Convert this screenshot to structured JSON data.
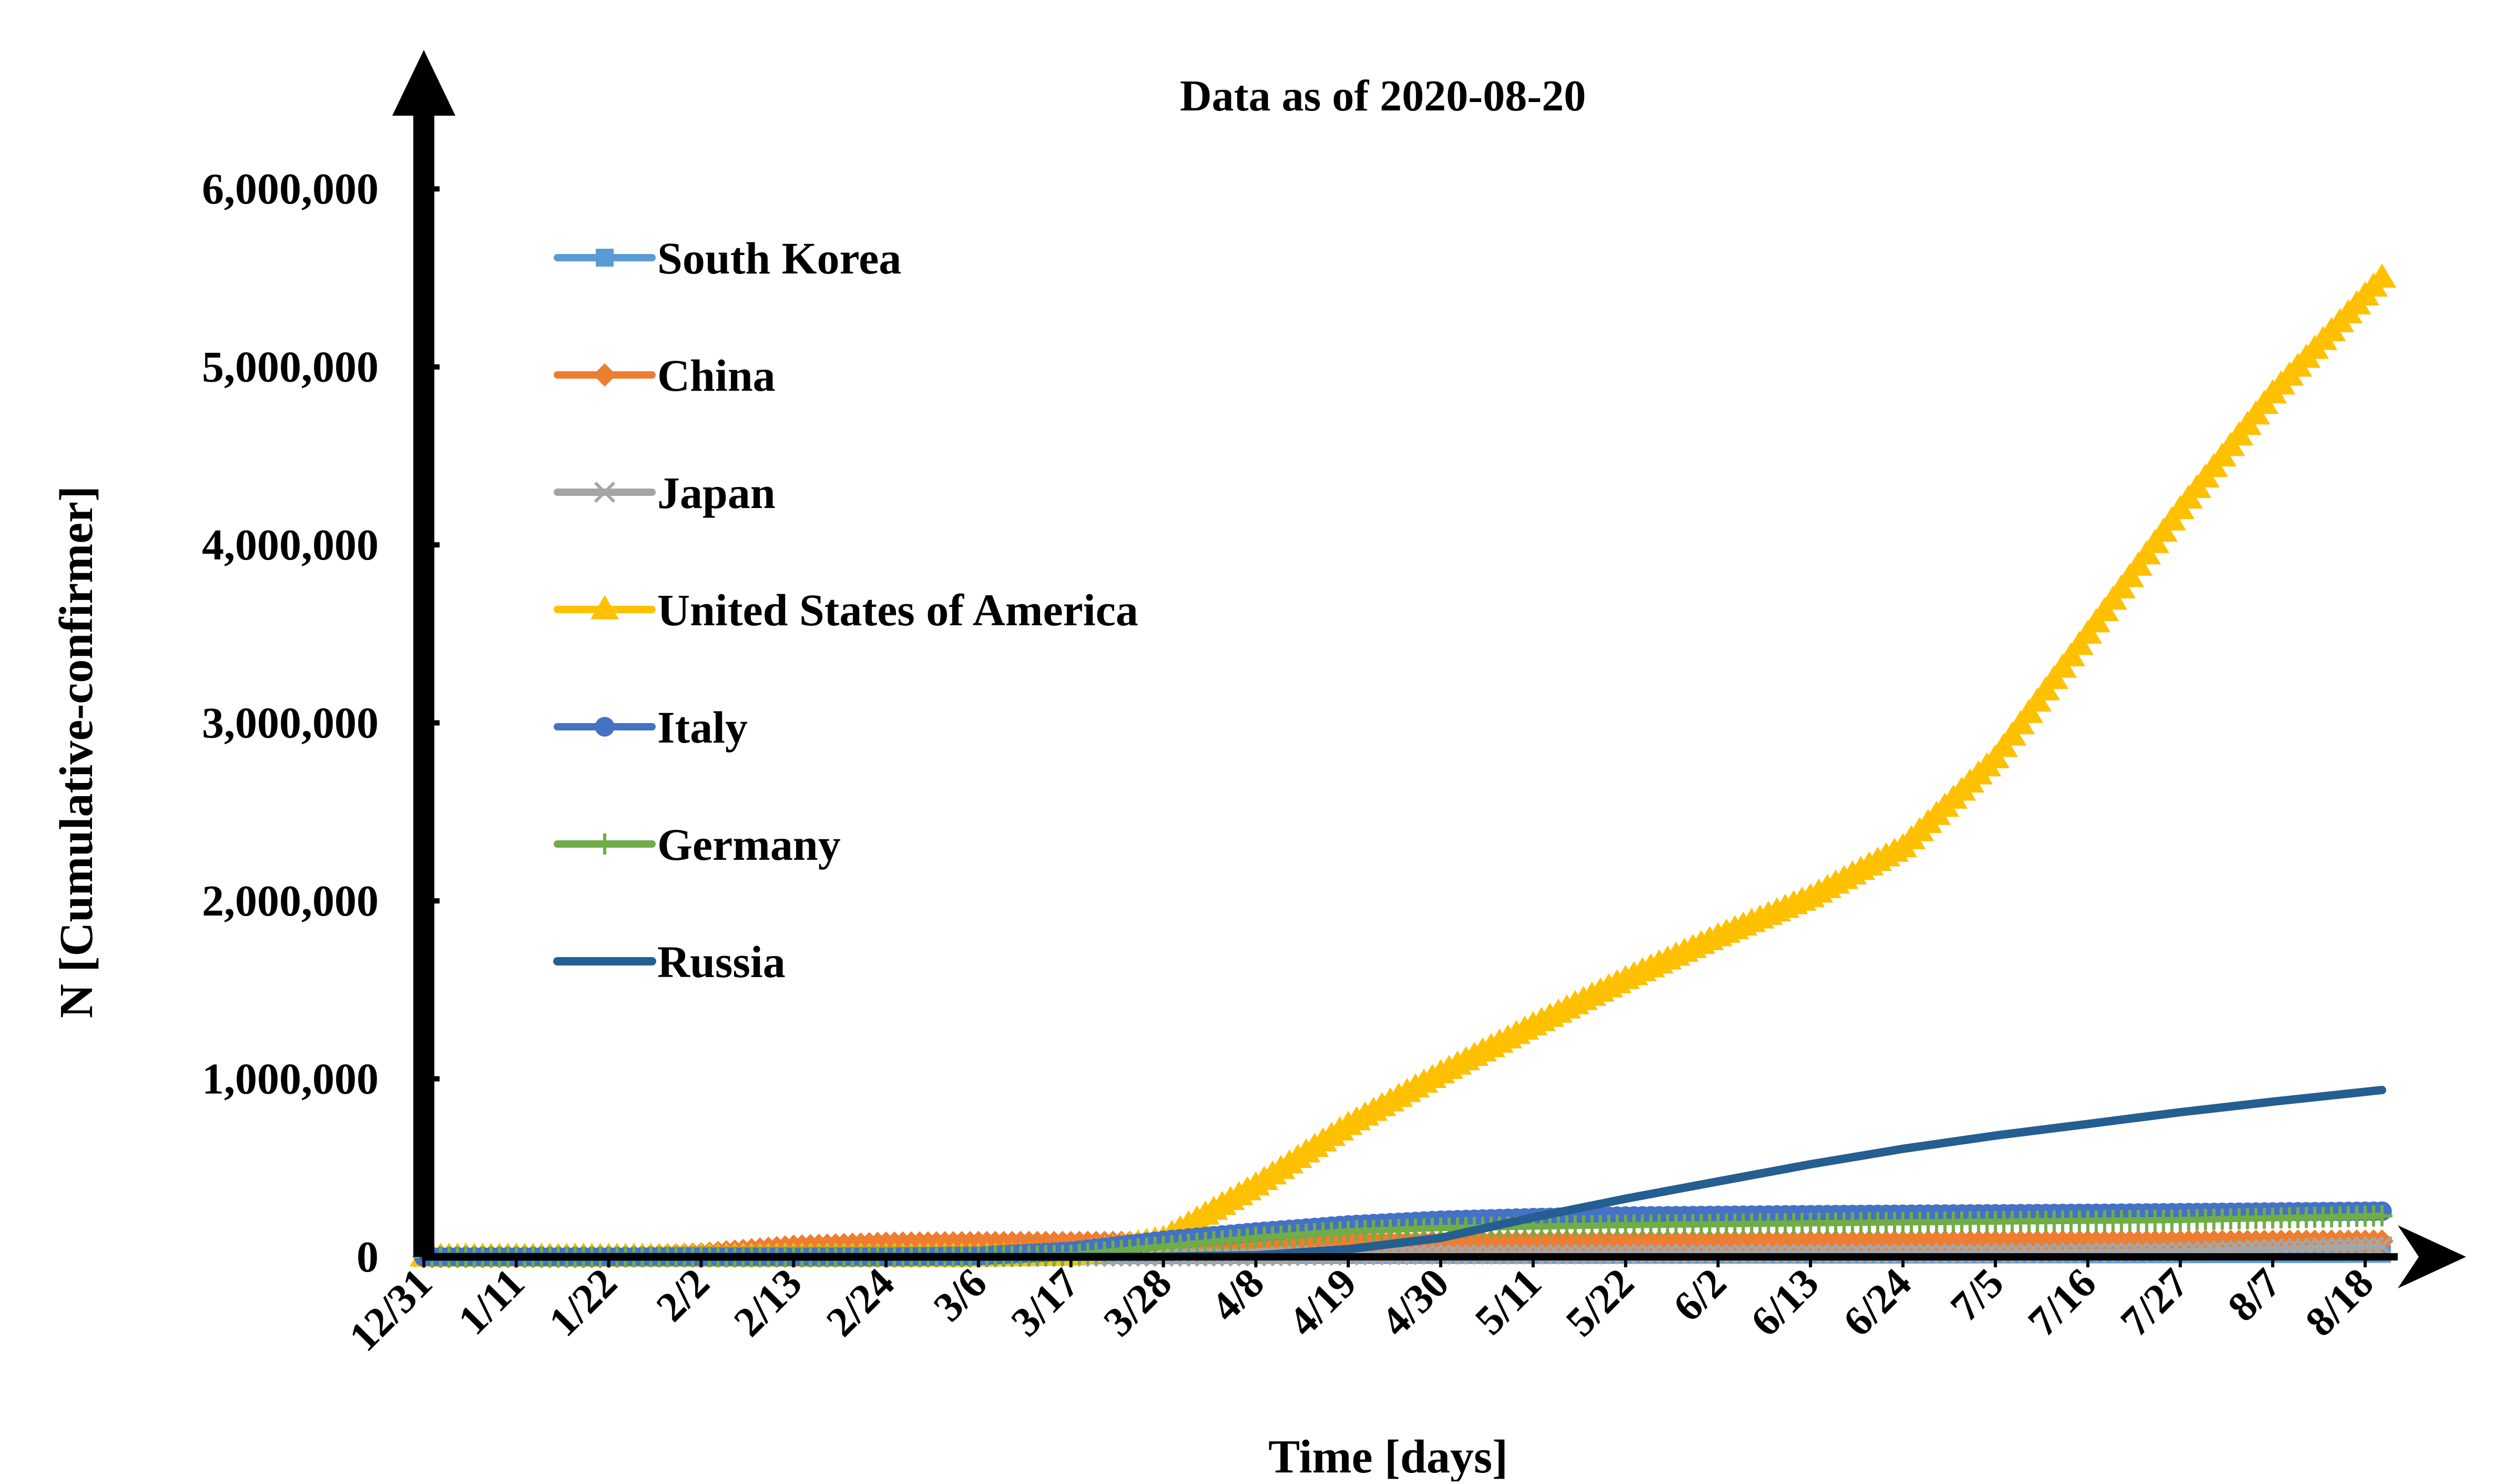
{
  "chart_data": {
    "type": "line",
    "title": "Data as of 2020-08-20",
    "xlabel": "Time [days]",
    "ylabel": "N [Cumulative-confirmer]",
    "ylim": [
      0,
      6500000
    ],
    "y_ticks": [
      "0",
      "1,000,000",
      "2,000,000",
      "3,000,000",
      "4,000,000",
      "5,000,000",
      "6,000,000"
    ],
    "y_tick_values": [
      0,
      1000000,
      2000000,
      3000000,
      4000000,
      5000000,
      6000000
    ],
    "x_start_date": "2019-12-31",
    "x_end_date": "2020-08-20",
    "x_tick_labels": [
      "12/31",
      "1/11",
      "1/22",
      "2/2",
      "2/13",
      "2/24",
      "3/6",
      "3/17",
      "3/28",
      "4/8",
      "4/19",
      "4/30",
      "5/11",
      "5/22",
      "6/2",
      "6/13",
      "6/24",
      "7/5",
      "7/16",
      "7/27",
      "8/7",
      "8/18"
    ],
    "legend_position": "upper-left",
    "grid": false,
    "series": [
      {
        "name": "South Korea",
        "color": "#5b9bd5",
        "marker": "square",
        "points": [
          [
            "2019-12-31",
            0
          ],
          [
            "2020-02-18",
            31
          ],
          [
            "2020-02-24",
            833
          ],
          [
            "2020-03-06",
            6593
          ],
          [
            "2020-03-17",
            8320
          ],
          [
            "2020-04-08",
            10384
          ],
          [
            "2020-05-11",
            10909
          ],
          [
            "2020-06-13",
            12085
          ],
          [
            "2020-07-16",
            13612
          ],
          [
            "2020-08-20",
            16346
          ]
        ]
      },
      {
        "name": "China",
        "color": "#ed7d31",
        "marker": "diamond",
        "points": [
          [
            "2019-12-31",
            0
          ],
          [
            "2020-01-11",
            41
          ],
          [
            "2020-01-22",
            571
          ],
          [
            "2020-02-02",
            17205
          ],
          [
            "2020-02-13",
            59804
          ],
          [
            "2020-02-24",
            77262
          ],
          [
            "2020-03-06",
            80651
          ],
          [
            "2020-03-17",
            81058
          ],
          [
            "2020-03-28",
            81999
          ],
          [
            "2020-04-30",
            84373
          ],
          [
            "2020-06-24",
            85000
          ],
          [
            "2020-08-20",
            89000
          ]
        ]
      },
      {
        "name": "Japan",
        "color": "#a5a5a5",
        "marker": "cross",
        "points": [
          [
            "2019-12-31",
            0
          ],
          [
            "2020-03-06",
            420
          ],
          [
            "2020-04-08",
            4768
          ],
          [
            "2020-04-30",
            14088
          ],
          [
            "2020-06-02",
            16986
          ],
          [
            "2020-07-05",
            19522
          ],
          [
            "2020-07-27",
            30000
          ],
          [
            "2020-08-20",
            59000
          ]
        ]
      },
      {
        "name": "United States of America",
        "color": "#ffc000",
        "marker": "triangle",
        "points": [
          [
            "2019-12-31",
            0
          ],
          [
            "2020-03-06",
            300
          ],
          [
            "2020-03-17",
            6500
          ],
          [
            "2020-03-28",
            100000
          ],
          [
            "2020-04-08",
            400000
          ],
          [
            "2020-04-19",
            740000
          ],
          [
            "2020-04-30",
            1030000
          ],
          [
            "2020-05-11",
            1300000
          ],
          [
            "2020-05-22",
            1560000
          ],
          [
            "2020-06-02",
            1800000
          ],
          [
            "2020-06-13",
            2020000
          ],
          [
            "2020-06-24",
            2300000
          ],
          [
            "2020-07-05",
            2800000
          ],
          [
            "2020-07-16",
            3500000
          ],
          [
            "2020-07-27",
            4200000
          ],
          [
            "2020-08-07",
            4850000
          ],
          [
            "2020-08-20",
            5500000
          ]
        ]
      },
      {
        "name": "Italy",
        "color": "#4472c4",
        "marker": "circle",
        "points": [
          [
            "2019-12-31",
            0
          ],
          [
            "2020-02-24",
            229
          ],
          [
            "2020-03-06",
            4636
          ],
          [
            "2020-03-17",
            31506
          ],
          [
            "2020-03-28",
            92472
          ],
          [
            "2020-04-08",
            139422
          ],
          [
            "2020-04-19",
            178972
          ],
          [
            "2020-04-30",
            205463
          ],
          [
            "2020-05-11",
            219814
          ],
          [
            "2020-05-22",
            228658
          ],
          [
            "2020-06-13",
            236305
          ],
          [
            "2020-07-16",
            243736
          ],
          [
            "2020-08-20",
            256118
          ]
        ]
      },
      {
        "name": "Germany",
        "color": "#70ad47",
        "marker": "plus",
        "points": [
          [
            "2019-12-31",
            0
          ],
          [
            "2020-02-24",
            16
          ],
          [
            "2020-03-06",
            670
          ],
          [
            "2020-03-17",
            9360
          ],
          [
            "2020-03-28",
            57695
          ],
          [
            "2020-04-08",
            107663
          ],
          [
            "2020-04-19",
            143724
          ],
          [
            "2020-04-30",
            161539
          ],
          [
            "2020-05-22",
            178281
          ],
          [
            "2020-06-24",
            193499
          ],
          [
            "2020-07-27",
            206926
          ],
          [
            "2020-08-20",
            230048
          ]
        ]
      },
      {
        "name": "Russia",
        "color": "#255e91",
        "marker": "none",
        "points": [
          [
            "2019-12-31",
            0
          ],
          [
            "2020-03-17",
            114
          ],
          [
            "2020-03-28",
            1264
          ],
          [
            "2020-04-08",
            8672
          ],
          [
            "2020-04-19",
            42853
          ],
          [
            "2020-04-30",
            106498
          ],
          [
            "2020-05-11",
            221344
          ],
          [
            "2020-05-22",
            326448
          ],
          [
            "2020-06-02",
            423741
          ],
          [
            "2020-06-13",
            520129
          ],
          [
            "2020-06-24",
            606881
          ],
          [
            "2020-07-05",
            681251
          ],
          [
            "2020-07-16",
            746369
          ],
          [
            "2020-07-27",
            812485
          ],
          [
            "2020-08-07",
            871894
          ],
          [
            "2020-08-20",
            937321
          ]
        ]
      }
    ]
  }
}
